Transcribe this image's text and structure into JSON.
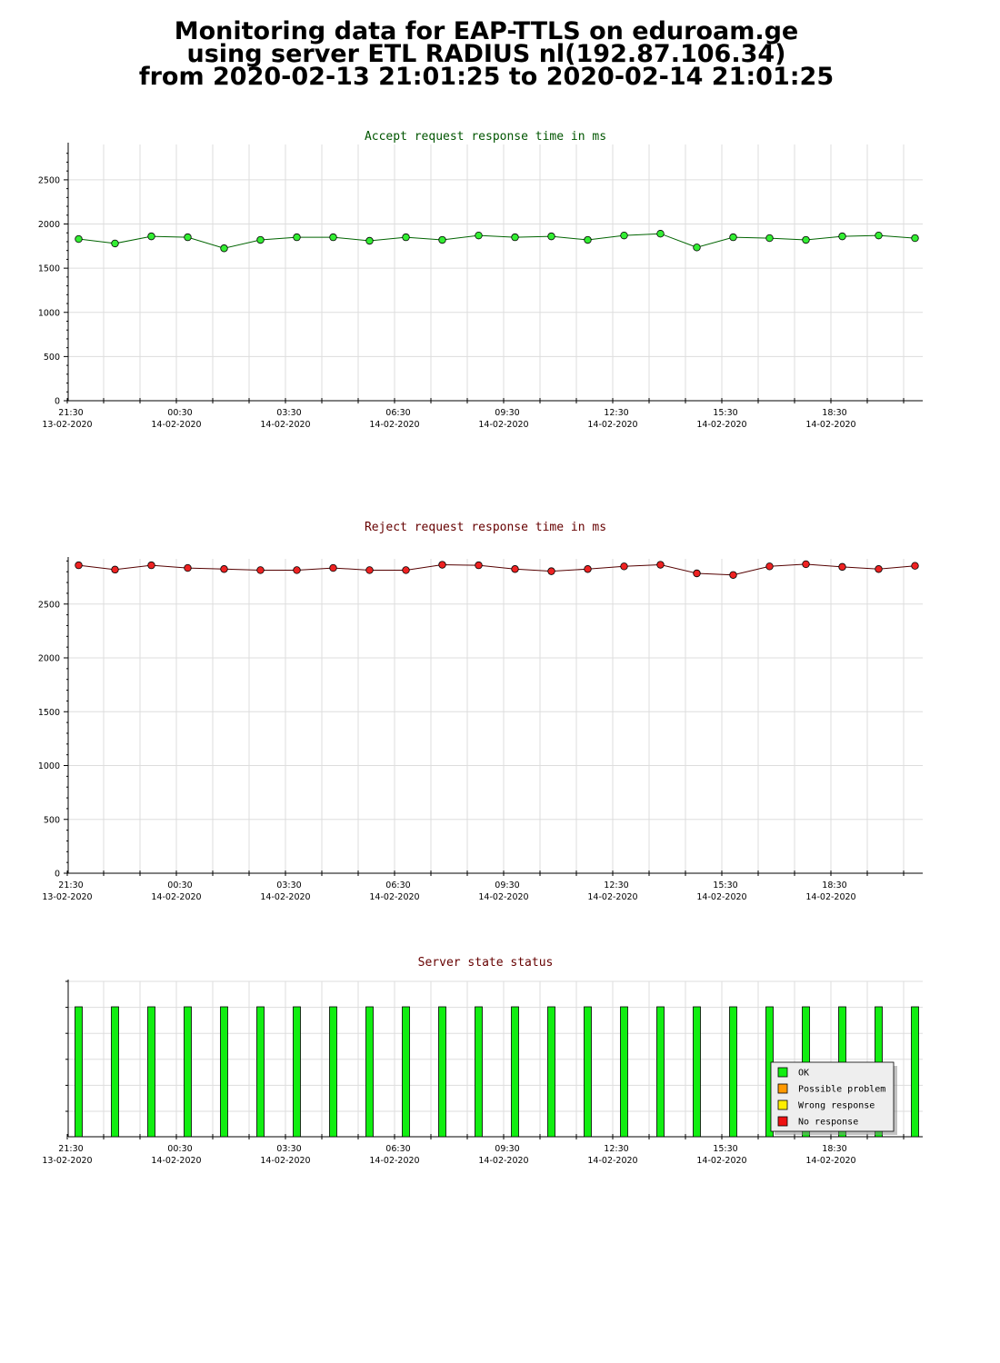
{
  "header": {
    "line1": "Monitoring data for EAP-TTLS on eduroam.ge",
    "line2": "using server ETL RADIUS nl(192.87.106.34)",
    "line3": "from 2020-02-13 21:01:25 to 2020-02-14 21:01:25"
  },
  "x_tick_labels": [
    {
      "time": "21:30",
      "date": "13-02-2020"
    },
    {
      "time": "00:30",
      "date": "14-02-2020"
    },
    {
      "time": "03:30",
      "date": "14-02-2020"
    },
    {
      "time": "06:30",
      "date": "14-02-2020"
    },
    {
      "time": "09:30",
      "date": "14-02-2020"
    },
    {
      "time": "12:30",
      "date": "14-02-2020"
    },
    {
      "time": "15:30",
      "date": "14-02-2020"
    },
    {
      "time": "18:30",
      "date": "14-02-2020"
    }
  ],
  "colors": {
    "accept_line": "#006400",
    "accept_marker": "#33ee33",
    "reject_line": "#550000",
    "reject_marker": "#ee2222",
    "ok": "#11ee11",
    "possible_problem": "#ff9900",
    "wrong_response": "#ffee00",
    "no_response": "#ee1111",
    "accept_title": "#005500",
    "reject_title": "#660000"
  },
  "chart_data": [
    {
      "type": "line",
      "title": "Accept request response time in ms",
      "x": [
        "21:15",
        "22:15",
        "23:15",
        "00:15",
        "01:15",
        "02:15",
        "03:15",
        "04:15",
        "05:15",
        "06:15",
        "07:15",
        "08:15",
        "09:15",
        "10:15",
        "11:15",
        "12:15",
        "13:15",
        "14:15",
        "15:15",
        "16:15",
        "17:15",
        "18:15",
        "19:15",
        "20:15"
      ],
      "values": [
        1830,
        1780,
        1860,
        1850,
        1725,
        1820,
        1850,
        1850,
        1810,
        1850,
        1820,
        1870,
        1850,
        1860,
        1820,
        1870,
        1890,
        1735,
        1850,
        1840,
        1820,
        1860,
        1870,
        1840
      ],
      "yticks": [
        0,
        500,
        1000,
        1500,
        2000,
        2500
      ],
      "ylim": [
        0,
        2900
      ],
      "grid": true
    },
    {
      "type": "line",
      "title": "Reject request response time in ms",
      "x": [
        "21:15",
        "22:15",
        "23:15",
        "00:15",
        "01:15",
        "02:15",
        "03:15",
        "04:15",
        "05:15",
        "06:15",
        "07:15",
        "08:15",
        "09:15",
        "10:15",
        "11:15",
        "12:15",
        "13:15",
        "14:15",
        "15:15",
        "16:15",
        "17:15",
        "18:15",
        "19:15",
        "20:15"
      ],
      "values": [
        2860,
        2820,
        2860,
        2835,
        2825,
        2815,
        2815,
        2835,
        2815,
        2815,
        2865,
        2860,
        2825,
        2805,
        2825,
        2850,
        2865,
        2785,
        2770,
        2850,
        2870,
        2845,
        2825,
        2855
      ],
      "yticks": [
        0,
        500,
        1000,
        1500,
        2000,
        2500
      ],
      "ylim": [
        0,
        2920
      ],
      "grid": true
    },
    {
      "type": "bar",
      "title": "Server state status",
      "x": [
        "21:15",
        "22:15",
        "23:15",
        "00:15",
        "01:15",
        "02:15",
        "03:15",
        "04:15",
        "05:15",
        "06:15",
        "07:15",
        "08:15",
        "09:15",
        "10:15",
        "11:15",
        "12:15",
        "13:15",
        "14:15",
        "15:15",
        "16:15",
        "17:15",
        "18:15",
        "19:15",
        "20:15"
      ],
      "status": [
        "OK",
        "OK",
        "OK",
        "OK",
        "OK",
        "OK",
        "OK",
        "OK",
        "OK",
        "OK",
        "OK",
        "OK",
        "OK",
        "OK",
        "OK",
        "OK",
        "OK",
        "OK",
        "OK",
        "OK",
        "OK",
        "OK",
        "OK",
        "OK"
      ],
      "legend": [
        "OK",
        "Possible problem",
        "Wrong response",
        "No response"
      ],
      "legend_position": "bottom-right",
      "grid": true
    }
  ]
}
